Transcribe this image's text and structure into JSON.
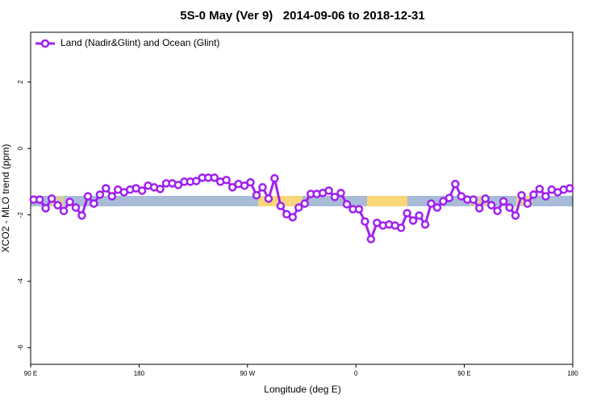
{
  "chart_data": {
    "type": "line",
    "title": "5S-0 May (Ver 9)   2014-09-06 to 2018-12-31",
    "x_label": "Longitude (deg E)",
    "y_label": "XCO2 - MLO trend (ppm)",
    "xlim": [
      90,
      540
    ],
    "ylim": [
      -6.5,
      3.5
    ],
    "xticks": [
      {
        "value": 90,
        "label": "90 E"
      },
      180,
      {
        "value": 270,
        "label": "90 W"
      },
      {
        "value": 360,
        "label": "0"
      },
      {
        "value": 450,
        "label": "90 E"
      },
      {
        "value": 540,
        "label": "180"
      }
    ],
    "yticks": [
      -6,
      -4,
      -2,
      0,
      2
    ],
    "legend": "top-left",
    "x": [
      92.5,
      97.5,
      102.5,
      107.5,
      112.5,
      117.5,
      122.5,
      127.5,
      132.5,
      137.5,
      142.5,
      147.5,
      152.5,
      157.5,
      162.5,
      167.5,
      172.5,
      177.5,
      182.5,
      187.5,
      192.5,
      197.5,
      202.5,
      207.5,
      212.5,
      217.5,
      222.5,
      227.5,
      232.5,
      237.5,
      242.5,
      247.5,
      252.5,
      257.5,
      262.5,
      267.5,
      272.5,
      277.5,
      282.5,
      287.5,
      292.5,
      297.5,
      302.5,
      307.5,
      312.5,
      317.5,
      322.5,
      327.5,
      332.5,
      337.5,
      342.5,
      347.5,
      352.5,
      357.5,
      362.5,
      367.5,
      372.5,
      377.5,
      382.5,
      387.5,
      392.5,
      397.5,
      402.5,
      407.5,
      412.5,
      417.5,
      422.5,
      427.5,
      432.5,
      437.5,
      442.5,
      447.5,
      452.5,
      457.5,
      462.5,
      467.5,
      472.5,
      477.5,
      482.5,
      487.5,
      492.5,
      497.5,
      502.5,
      507.5,
      512.5,
      517.5,
      522.5,
      527.5,
      532.5,
      537.5
    ],
    "series": [
      {
        "name": "Land (Nadir&Glint) and Ocean (Glint)",
        "color": "#a020f0",
        "values": [
          -1.54,
          -1.54,
          -1.8,
          -1.51,
          -1.71,
          -1.88,
          -1.61,
          -1.78,
          -2.02,
          -1.44,
          -1.66,
          -1.39,
          -1.2,
          -1.44,
          -1.24,
          -1.32,
          -1.24,
          -1.2,
          -1.27,
          -1.12,
          -1.17,
          -1.22,
          -1.05,
          -1.05,
          -1.1,
          -1.0,
          -1.0,
          -0.98,
          -0.88,
          -0.88,
          -0.88,
          -1.0,
          -0.95,
          -1.17,
          -1.07,
          -1.12,
          -1.02,
          -1.41,
          -1.17,
          -1.51,
          -0.9,
          -1.73,
          -1.98,
          -2.07,
          -1.78,
          -1.66,
          -1.37,
          -1.37,
          -1.34,
          -1.27,
          -1.46,
          -1.34,
          -1.68,
          -1.83,
          -1.83,
          -2.2,
          -2.73,
          -2.24,
          -2.32,
          -2.29,
          -2.32,
          -2.39,
          -1.95,
          -2.17,
          -2.02,
          -2.29,
          -1.66,
          -1.78,
          -1.59,
          -1.49,
          -1.07,
          -1.44,
          -1.54,
          -1.54,
          -1.8,
          -1.51,
          -1.71,
          -1.88,
          -1.59,
          -1.78,
          -2.02,
          -1.41,
          -1.66,
          -1.39,
          -1.22,
          -1.44,
          -1.24,
          -1.32,
          -1.24,
          -1.2
        ]
      }
    ]
  }
}
